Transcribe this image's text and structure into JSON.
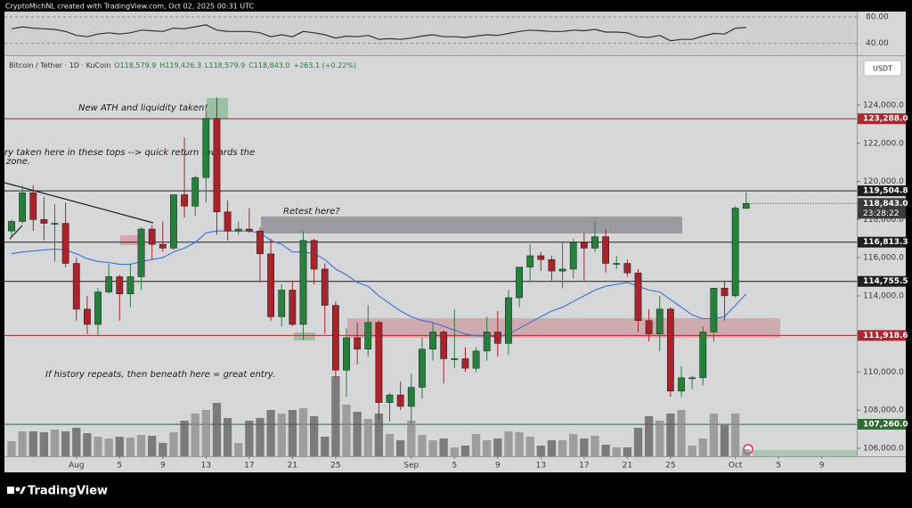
{
  "header": {
    "credit": "CryptoMichNL created with TradingView.com, Oct 02, 2025 00:31 UTC",
    "symbol": "Bitcoin / Tether · 1D · KuCoin",
    "ohlc": [
      "O118,579.9",
      "H119,426.3",
      "L118,579.9",
      "C118,843.0",
      "+263.1 (+0.22%)"
    ],
    "currency": "USDT"
  },
  "footer": {
    "brand": "TradingView"
  },
  "chart_data": {
    "type": "candlestick",
    "annotations": [
      "New ATH and liquidity taken!",
      "ry taken here in these tops --> quick return towards the",
      "zone.",
      "Retest here?",
      "If history repeats, then beneath here = great entry."
    ],
    "x": [
      0,
      1,
      2,
      3,
      4,
      5,
      6,
      7,
      8,
      9,
      10,
      11,
      12,
      13,
      14,
      15,
      16,
      17,
      18,
      19,
      20,
      21,
      22,
      23,
      24,
      25,
      26,
      27,
      28,
      29,
      30,
      31,
      32,
      33,
      34,
      35,
      36,
      37,
      38,
      39,
      40,
      41,
      42,
      43,
      44,
      45,
      46,
      47,
      48,
      49,
      50,
      51,
      52,
      53,
      54,
      55,
      56,
      57,
      58,
      59,
      60,
      61,
      62,
      63,
      64,
      65,
      66,
      67,
      68
    ],
    "xlim": [
      -0.66,
      78.24
    ],
    "xticks": [
      {
        "value": 6,
        "label": "Aug"
      },
      {
        "value": 10,
        "label": "5"
      },
      {
        "value": 14,
        "label": "9"
      },
      {
        "value": 18,
        "label": "13"
      },
      {
        "value": 22,
        "label": "17"
      },
      {
        "value": 26,
        "label": "21"
      },
      {
        "value": 30,
        "label": "25"
      },
      {
        "value": 37,
        "label": "Sep"
      },
      {
        "value": 41,
        "label": "5"
      },
      {
        "value": 45,
        "label": "9"
      },
      {
        "value": 49,
        "label": "13"
      },
      {
        "value": 53,
        "label": "17"
      },
      {
        "value": 57,
        "label": "21"
      },
      {
        "value": 61,
        "label": "25"
      },
      {
        "value": 67,
        "label": "Oct"
      },
      {
        "value": 71,
        "label": "5"
      },
      {
        "value": 75,
        "label": "9"
      }
    ],
    "ylim": [
      105580,
      126570
    ],
    "yticks": [
      {
        "value": 106000,
        "label": "106,000.0"
      },
      {
        "value": 108000,
        "label": "108,000.0"
      },
      {
        "value": 110000,
        "label": "110,000.0"
      },
      {
        "value": 112000,
        "label": "112,000.0"
      },
      {
        "value": 114000,
        "label": "114,000.0"
      },
      {
        "value": 116000,
        "label": "116,000.0"
      },
      {
        "value": 118000,
        "label": "118,000.0"
      },
      {
        "value": 120000,
        "label": "120,000.0"
      },
      {
        "value": 122000,
        "label": "122,000.0"
      },
      {
        "value": 124000,
        "label": "124,000.0"
      }
    ],
    "grid": false,
    "up_color": "#26803c",
    "down_color": "#a8232c",
    "open": [
      117400,
      117900,
      119400,
      118000,
      117800,
      117800,
      115700,
      113300,
      112500,
      114200,
      115000,
      114100,
      115000,
      117500,
      116700,
      116500,
      119300,
      118700,
      120200,
      123300,
      118400,
      117400,
      117500,
      117400,
      116200,
      112900,
      114300,
      112500,
      116900,
      115400,
      113500,
      110100,
      111800,
      111200,
      112600,
      108400,
      108800,
      108200,
      109200,
      111200,
      112100,
      110700,
      110700,
      110200,
      111100,
      112100,
      111500,
      113900,
      115500,
      116100,
      115900,
      115300,
      115400,
      116800,
      116500,
      117100,
      115700,
      115700,
      115200,
      112700,
      112000,
      113300,
      109000,
      109700,
      109700,
      112100,
      114400,
      114000,
      118579.9
    ],
    "high": [
      118000,
      119800,
      119800,
      119200,
      118800,
      118900,
      116000,
      114000,
      114400,
      115700,
      115100,
      115700,
      117600,
      117700,
      117900,
      119300,
      122300,
      120300,
      123700,
      124400,
      119000,
      117900,
      118600,
      117600,
      117000,
      114600,
      114800,
      117400,
      117000,
      115700,
      113700,
      112300,
      112600,
      113500,
      112700,
      108900,
      109500,
      109900,
      111800,
      112600,
      112200,
      113300,
      111300,
      111300,
      112900,
      113200,
      114300,
      115500,
      116700,
      116300,
      116100,
      116800,
      117000,
      117300,
      117900,
      117500,
      116100,
      115900,
      115400,
      113300,
      114000,
      113400,
      110300,
      109800,
      112400,
      114400,
      114800,
      118700,
      119426.3
    ],
    "low": [
      117100,
      117800,
      117400,
      116900,
      115800,
      115500,
      112700,
      112000,
      111900,
      114100,
      112700,
      113400,
      114300,
      115900,
      116300,
      116400,
      118100,
      118200,
      118900,
      117200,
      116900,
      117200,
      117300,
      114700,
      112700,
      112400,
      112400,
      111700,
      114600,
      112000,
      109700,
      108700,
      110400,
      110800,
      107500,
      107400,
      108000,
      107300,
      108600,
      110600,
      109400,
      110200,
      110000,
      110000,
      110600,
      110800,
      110900,
      113400,
      114800,
      115300,
      114800,
      114400,
      114900,
      114800,
      116300,
      115200,
      115400,
      115000,
      112100,
      111600,
      111100,
      108700,
      108700,
      109100,
      109300,
      111600,
      112700,
      113900,
      118579.9
    ],
    "close": [
      117900,
      119400,
      118000,
      117800,
      117800,
      115700,
      113300,
      112500,
      114200,
      115000,
      114100,
      115000,
      117500,
      116700,
      116500,
      119300,
      118700,
      120200,
      123300,
      118400,
      117400,
      117500,
      117400,
      116200,
      112900,
      114300,
      112500,
      116900,
      115400,
      113500,
      110100,
      111800,
      111200,
      112600,
      108400,
      108800,
      108200,
      109200,
      111200,
      112100,
      110700,
      110700,
      110200,
      111100,
      112100,
      111500,
      113900,
      115500,
      116100,
      115900,
      115300,
      115400,
      116800,
      116500,
      117100,
      115700,
      115700,
      115200,
      112700,
      112000,
      113300,
      109000,
      109700,
      109700,
      112100,
      114400,
      114000,
      118600,
      118843
    ],
    "volume": [
      17,
      28,
      28,
      27,
      30,
      28,
      32,
      26,
      22,
      20,
      22,
      21,
      24,
      23,
      15,
      27,
      40,
      48,
      52,
      60,
      43,
      15,
      40,
      43,
      52,
      48,
      52,
      54,
      45,
      22,
      90,
      58,
      50,
      42,
      48,
      25,
      18,
      40,
      24,
      18,
      20,
      10,
      12,
      25,
      18,
      20,
      28,
      27,
      22,
      12,
      18,
      18,
      25,
      20,
      23,
      13,
      10,
      10,
      32,
      45,
      40,
      48,
      52,
      12,
      20,
      48,
      35,
      48,
      8
    ],
    "volume_lim": [
      0,
      100
    ],
    "volume_up_color": "#8a8a8a",
    "volume_down_color": "#5c5c5c",
    "ma": {
      "color": "#3d6fd8",
      "values": [
        116200,
        116300,
        116350,
        116400,
        116450,
        116400,
        116200,
        115950,
        115800,
        115750,
        115650,
        115650,
        115800,
        115900,
        116000,
        116300,
        116500,
        116800,
        117300,
        117400,
        117400,
        117400,
        117400,
        117300,
        116900,
        116700,
        116300,
        116300,
        116200,
        115900,
        115400,
        115100,
        114700,
        114500,
        114000,
        113600,
        113200,
        112900,
        112700,
        112600,
        112400,
        112200,
        112000,
        111900,
        111900,
        111850,
        112000,
        112300,
        112600,
        112900,
        113200,
        113400,
        113700,
        114000,
        114300,
        114500,
        114600,
        114700,
        114500,
        114300,
        114200,
        113800,
        113400,
        113000,
        112800,
        112800,
        112900,
        113500,
        114100
      ]
    },
    "levels": [
      {
        "value": 123288.0,
        "label": "123,288.0",
        "color": "#b0262f"
      },
      {
        "value": 119504.8,
        "label": "119,504.8",
        "color": "#1e1e1e"
      },
      {
        "value": 116813.3,
        "label": "116,813.3",
        "color": "#1e1e1e"
      },
      {
        "value": 114755.5,
        "label": "114,755.5",
        "color": "#1e1e1e"
      },
      {
        "value": 111918.6,
        "label": "111,918.6",
        "color": "#b0262f"
      },
      {
        "value": 107260.0,
        "label": "107,260.0",
        "color": "#2e6b34"
      }
    ],
    "last_price": {
      "value": 118843.0,
      "label": "118,843.0",
      "countdown": "23:28:22",
      "color": "#3a3a3a"
    },
    "rsi": {
      "color": "#333333",
      "ylim": [
        22,
        88
      ],
      "yticks": [
        {
          "value": 80,
          "label": "80.00"
        },
        {
          "value": 40,
          "label": "40.00"
        }
      ],
      "values": [
        62,
        65,
        63,
        62,
        61,
        58,
        52,
        50,
        54,
        56,
        54,
        56,
        60,
        59,
        58,
        63,
        62,
        65,
        68,
        60,
        58,
        58,
        58,
        56,
        50,
        53,
        50,
        58,
        56,
        53,
        48,
        51,
        50,
        52,
        46,
        47,
        46,
        48,
        51,
        53,
        50,
        50,
        49,
        51,
        53,
        52,
        55,
        58,
        60,
        59,
        58,
        58,
        60,
        59,
        61,
        57,
        57,
        56,
        50,
        49,
        52,
        44,
        46,
        46,
        51,
        55,
        54,
        63,
        64
      ]
    }
  }
}
